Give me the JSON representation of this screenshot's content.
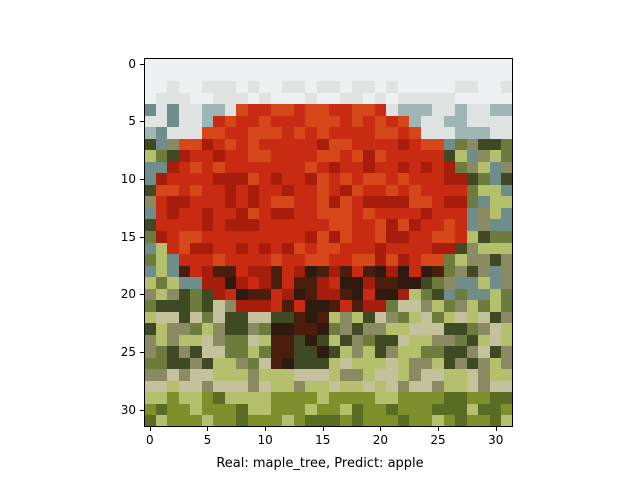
{
  "caption": "Real: maple_tree, Predict: apple",
  "axes": {
    "x_ticks": [
      "0",
      "5",
      "10",
      "15",
      "20",
      "25",
      "30"
    ],
    "y_ticks": [
      "0",
      "5",
      "10",
      "15",
      "20",
      "25",
      "30"
    ],
    "range": [
      0,
      31
    ]
  },
  "image": {
    "subject": "maple-tree",
    "resolution": [
      32,
      32
    ],
    "palette": {
      "sky": "#eef1f1",
      "sky_dim": "#dfe3e2",
      "hill": "#9fb6b4",
      "hill_dark": "#6f8e8b",
      "foliage_red": "#c92a12",
      "foliage_deep": "#a81c0c",
      "foliage_orange": "#d6481a",
      "shade": "#4a1d0c",
      "trunk": "#2e1a0e",
      "grass_light": "#b5c06d",
      "grass": "#7f8f2c",
      "grass_dark": "#5a6b24",
      "fence": "#c4c29d",
      "fence_shadow": "#8a8a63",
      "bush": "#6d7b3c",
      "bush_dark": "#3f4a24"
    }
  }
}
